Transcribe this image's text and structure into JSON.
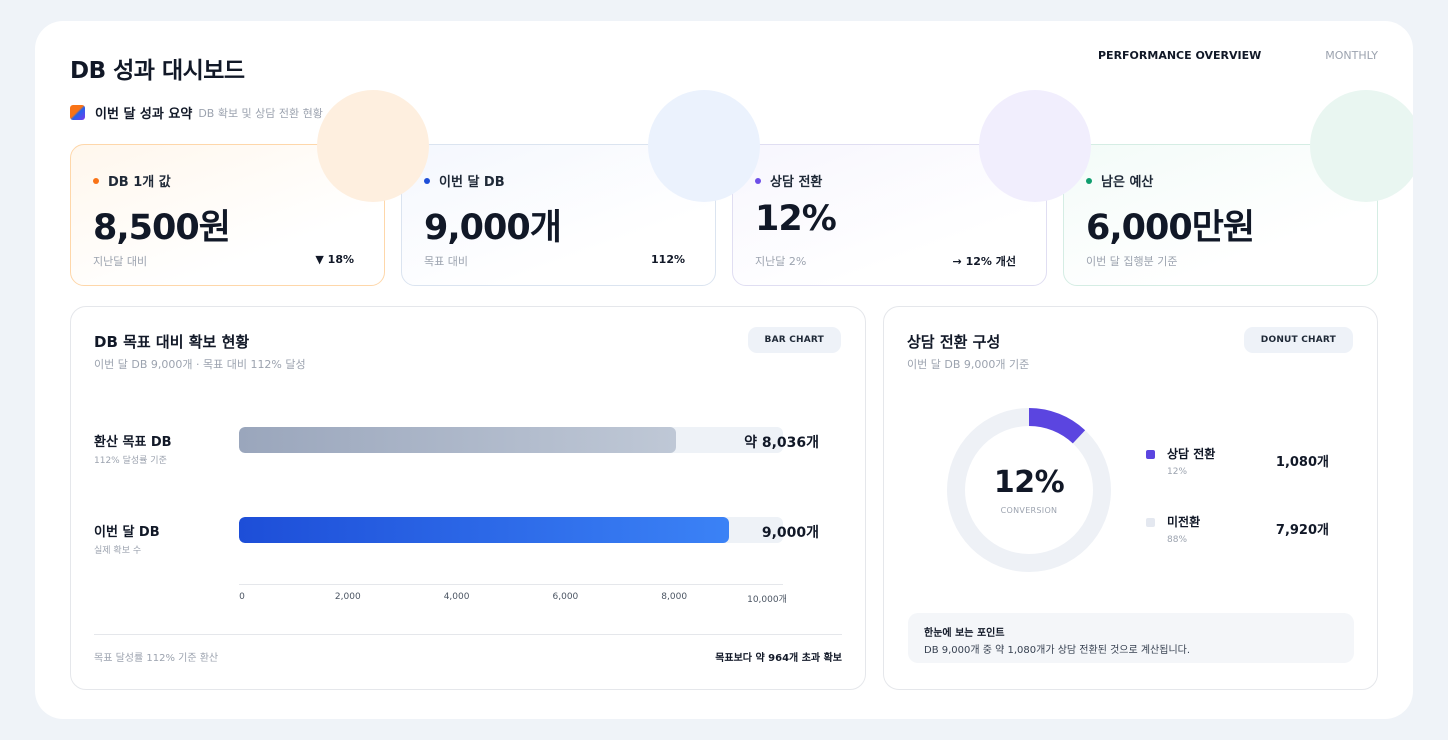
{
  "header": {
    "title": "DB 성과 대시보드",
    "tab_active": "PERFORMANCE OVERVIEW",
    "tab_inactive": "MONTHLY"
  },
  "summary": {
    "label": "이번 달 성과 요약",
    "description": "DB 확보 및 상담 전환 현황"
  },
  "kpis": [
    {
      "label": "DB 1개 값",
      "value": "8,500원",
      "foot_left": "지난달 대비",
      "foot_right": "▼ 18%",
      "dot_color": "#f97316"
    },
    {
      "label": "이번 달 DB",
      "value": "9,000개",
      "foot_left": "목표 대비",
      "foot_right": "112%",
      "dot_color": "#1d4ed8"
    },
    {
      "label": "상담 전환",
      "value": "12%",
      "foot_left": "지난달 2%",
      "foot_right": "→ 12% 개선",
      "dot_color": "#6d4ee8"
    },
    {
      "label": "남은 예산",
      "value": "6,000만원",
      "foot_left": "이번 달 집행분 기준",
      "foot_right": "",
      "dot_color": "#0f9d6e"
    }
  ],
  "bar_panel": {
    "title": "DB 목표 대비 확보 현황",
    "subtitle": "이번 달 DB 9,000개 · 목표 대비 112% 달성",
    "chip": "BAR CHART",
    "footer_left": "목표 달성률 112% 기준 환산",
    "footer_right": "목표보다 약 964개 초과 확보",
    "rows": [
      {
        "label": "환산 목표 DB",
        "note": "112% 달성률 기준",
        "value_label": "약 8,036개"
      },
      {
        "label": "이번 달 DB",
        "note": "실제 확보 수",
        "value_label": "9,000개"
      }
    ]
  },
  "donut_panel": {
    "title": "상담 전환 구성",
    "subtitle": "이번 달 DB 9,000개 기준",
    "chip": "DONUT CHART",
    "center_value": "12%",
    "center_caption": "CONVERSION",
    "legend": [
      {
        "label": "상담 전환",
        "pct": "12%",
        "value": "1,080개",
        "color": "#5b45e0"
      },
      {
        "label": "미전환",
        "pct": "88%",
        "value": "7,920개",
        "color": "#e4e8f0"
      }
    ],
    "point_title": "한눈에 보는 포인트",
    "point_text": "DB 9,000개 중 약 1,080개가 상담 전환된 것으로 계산됩니다."
  },
  "chart_data": [
    {
      "type": "bar",
      "orientation": "horizontal",
      "categories": [
        "환산 목표 DB",
        "이번 달 DB"
      ],
      "values": [
        8036,
        9000
      ],
      "xlim": [
        0,
        10000
      ],
      "ticks": [
        "0",
        "2,000",
        "4,000",
        "6,000",
        "8,000",
        "10,000개"
      ],
      "title": "DB 목표 대비 확보 현황",
      "grid": false
    },
    {
      "type": "pie",
      "variant": "donut",
      "categories": [
        "상담 전환",
        "미전환"
      ],
      "values": [
        1080,
        7920
      ],
      "title": "상담 전환 구성"
    }
  ]
}
